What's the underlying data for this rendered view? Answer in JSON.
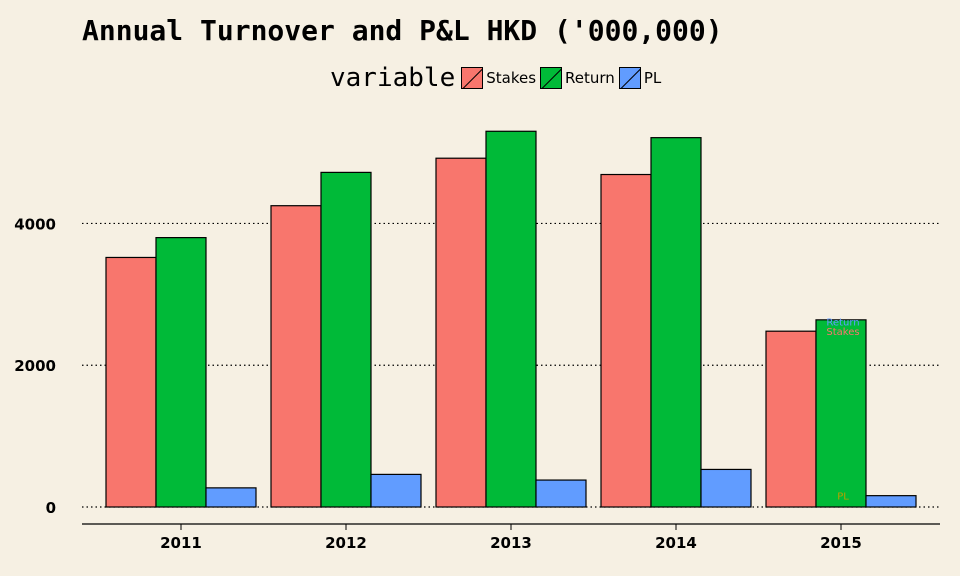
{
  "chart_data": {
    "type": "bar",
    "title": "Annual Turnover and P&L HKD ('000,000)",
    "legend_title": "variable",
    "legend_position": "top",
    "categories": [
      "2011",
      "2012",
      "2013",
      "2014",
      "2015"
    ],
    "series": [
      {
        "name": "Stakes",
        "color": "#f8766d",
        "values": [
          3520,
          4250,
          4920,
          4690,
          2480
        ]
      },
      {
        "name": "Return",
        "color": "#00ba38",
        "values": [
          3800,
          4720,
          5300,
          5210,
          2640
        ]
      },
      {
        "name": "PL",
        "color": "#619cff",
        "values": [
          270,
          460,
          380,
          530,
          160
        ]
      }
    ],
    "y_ticks": [
      0,
      2000,
      4000
    ],
    "y_tick_labels": [
      "0",
      "2000",
      "4000"
    ],
    "ylim": [
      0,
      5600
    ],
    "grid": "dotted horizontal",
    "annotations": [
      {
        "text": "Return",
        "category": "2015",
        "y": 2620,
        "color": "#619cff"
      },
      {
        "text": "Stakes",
        "category": "2015",
        "y": 2480,
        "color": "#f8766d"
      },
      {
        "text": "PL",
        "category": "2015",
        "y": 160,
        "color": "#b8a000"
      }
    ]
  }
}
